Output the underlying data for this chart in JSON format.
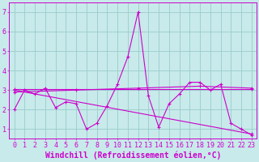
{
  "bg_color": "#c8eaea",
  "line_color": "#cc00cc",
  "grid_color": "#99cccc",
  "xlabel": "Windchill (Refroidissement éolien,°C)",
  "ylim": [
    0.5,
    7.5
  ],
  "xlim": [
    -0.5,
    23.5
  ],
  "yticks": [
    1,
    2,
    3,
    4,
    5,
    6,
    7
  ],
  "xticks": [
    0,
    1,
    2,
    3,
    4,
    5,
    6,
    7,
    8,
    9,
    10,
    11,
    12,
    13,
    14,
    15,
    16,
    17,
    18,
    19,
    20,
    21,
    22,
    23
  ],
  "series1_x": [
    0,
    1,
    2,
    3,
    4,
    5,
    6,
    7,
    8,
    9,
    10,
    11,
    12,
    13,
    14,
    15,
    16,
    17,
    18,
    19,
    20,
    21,
    22,
    23
  ],
  "series1_y": [
    2.0,
    3.0,
    2.8,
    3.1,
    2.1,
    2.4,
    2.3,
    1.0,
    1.3,
    2.2,
    3.3,
    4.7,
    7.0,
    2.7,
    1.1,
    2.3,
    2.8,
    3.4,
    3.4,
    3.0,
    3.3,
    1.3,
    1.0,
    0.7
  ],
  "series2_x": [
    0,
    23
  ],
  "series2_y": [
    3.05,
    3.05
  ],
  "series3_x": [
    0,
    6,
    12,
    18,
    23
  ],
  "series3_y": [
    2.9,
    3.0,
    3.1,
    3.2,
    3.1
  ],
  "series4_x": [
    0,
    23
  ],
  "series4_y": [
    3.0,
    0.75
  ],
  "xlabel_fontsize": 7,
  "tick_fontsize": 6
}
